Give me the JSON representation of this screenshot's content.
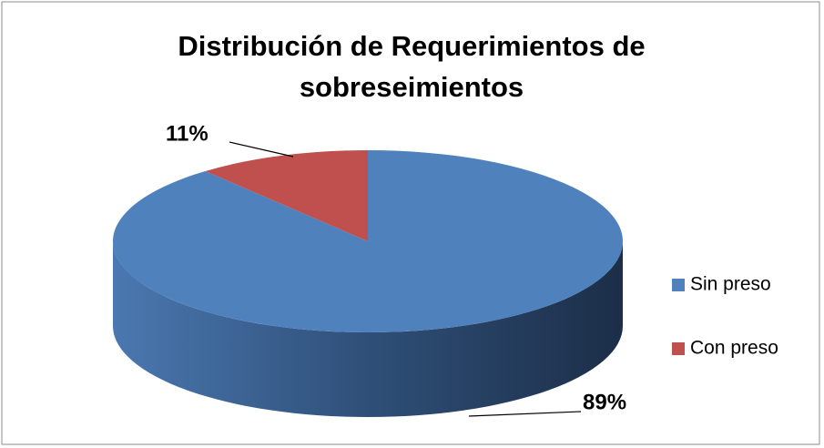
{
  "chart_data": {
    "type": "pie3d",
    "title": "Distribución de Requerimientos de sobreseimientos",
    "categories": [
      "Sin preso",
      "Con preso"
    ],
    "values": [
      89,
      11
    ],
    "value_labels": [
      "89%",
      "11%"
    ],
    "colors": [
      "#4f81bd",
      "#c0504d"
    ],
    "legend": "right"
  }
}
